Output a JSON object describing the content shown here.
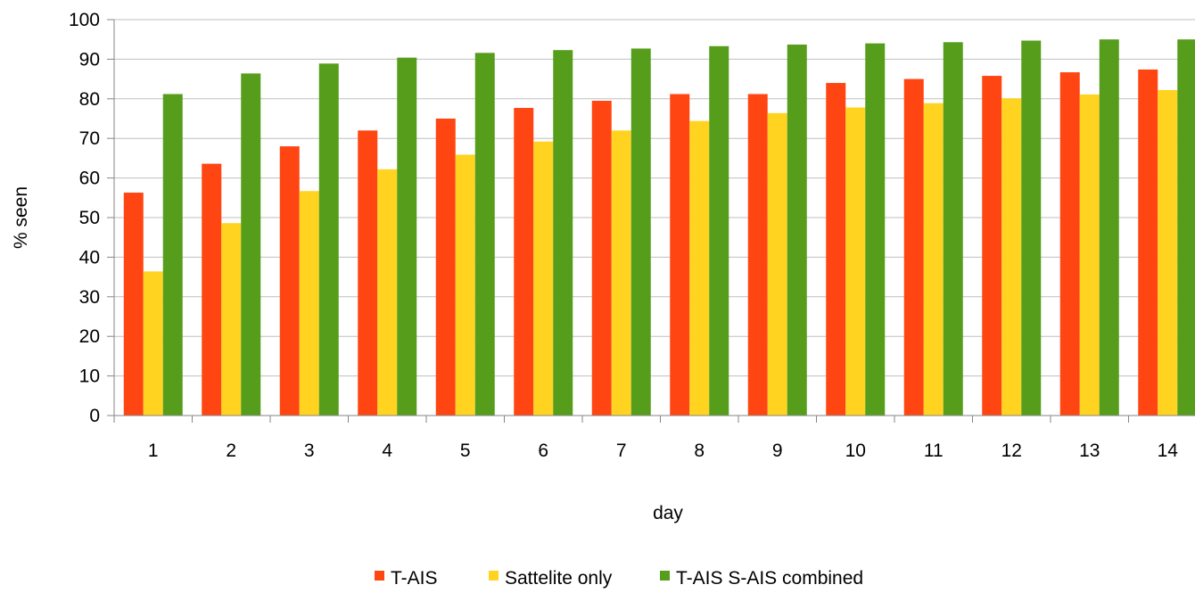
{
  "chart_data": {
    "type": "bar",
    "title": "",
    "xlabel": "day",
    "ylabel": "% seen",
    "ylim": [
      0,
      100
    ],
    "yticks": [
      0,
      10,
      20,
      30,
      40,
      50,
      60,
      70,
      80,
      90,
      100
    ],
    "grid": true,
    "legend_position": "bottom",
    "categories": [
      "1",
      "2",
      "3",
      "4",
      "5",
      "6",
      "7",
      "8",
      "9",
      "10",
      "11",
      "12",
      "13",
      "14"
    ],
    "series": [
      {
        "name": "T-AIS",
        "color": "#ff4612",
        "values": [
          56.3,
          63.6,
          68.0,
          72.0,
          75.0,
          77.7,
          79.5,
          81.2,
          81.2,
          84.0,
          85.0,
          85.8,
          86.7,
          87.4
        ]
      },
      {
        "name": "Sattelite only",
        "color": "#ffd320",
        "values": [
          36.4,
          48.6,
          56.7,
          62.2,
          65.9,
          69.2,
          72.0,
          74.4,
          76.4,
          77.8,
          78.9,
          80.1,
          81.1,
          82.2
        ]
      },
      {
        "name": "T-AIS S-AIS combined",
        "color": "#579d1c",
        "values": [
          81.2,
          86.4,
          88.9,
          90.4,
          91.6,
          92.3,
          92.7,
          93.3,
          93.7,
          94.0,
          94.3,
          94.7,
          95.0,
          95.0
        ]
      }
    ]
  }
}
